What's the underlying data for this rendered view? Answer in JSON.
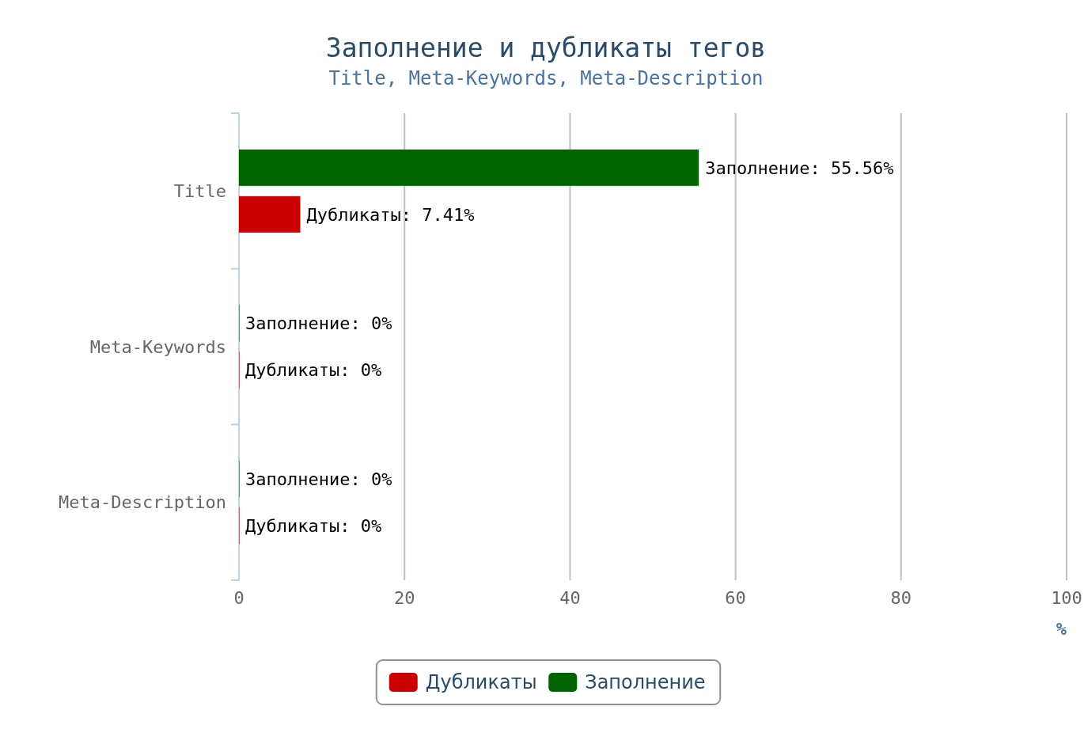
{
  "chart_data": {
    "type": "bar",
    "orientation": "horizontal",
    "title": "Заполнение и дубликаты тегов",
    "subtitle": "Title, Meta-Keywords, Meta-Description",
    "xlabel": "%",
    "categories": [
      "Title",
      "Meta-Keywords",
      "Meta-Description"
    ],
    "series": [
      {
        "name": "Дубликаты",
        "color": "#cc0000",
        "values": [
          7.41,
          0,
          0
        ],
        "value_labels": [
          "Дубликаты: 7.41%",
          "Дубликаты: 0%",
          "Дубликаты: 0%"
        ]
      },
      {
        "name": "Заполнение",
        "color": "#006400",
        "values": [
          55.56,
          0,
          0
        ],
        "value_labels": [
          "Заполнение: 55.56%",
          "Заполнение: 0%",
          "Заполнение: 0%"
        ]
      }
    ],
    "xlim": [
      0,
      100
    ],
    "xticks": [
      0,
      20,
      40,
      60,
      80,
      100
    ],
    "grid": "x",
    "legend": "bottom"
  }
}
